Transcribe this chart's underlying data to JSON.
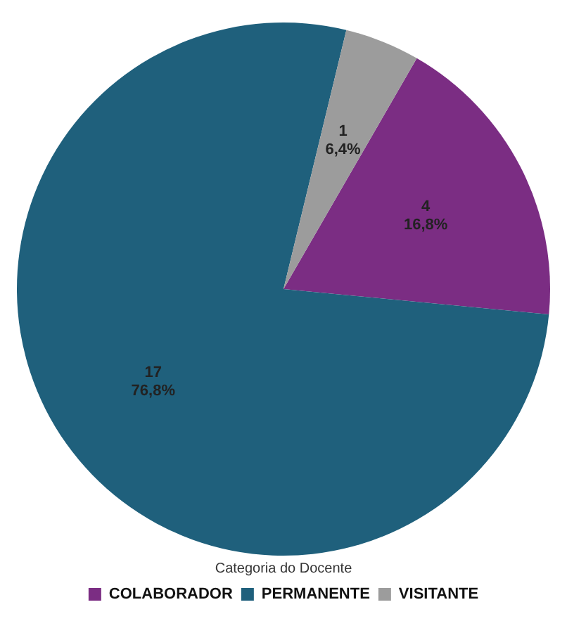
{
  "chart_data": {
    "type": "pie",
    "legend_title": "Categoria do Docente",
    "categories": [
      "COLABORADOR",
      "PERMANENTE",
      "VISITANTE"
    ],
    "values": [
      4,
      17,
      1
    ],
    "value_labels": [
      "4\n16,8%",
      "17\n76,8%",
      "1\n6,4%"
    ],
    "colors": [
      "#7b2d83",
      "#1f607c",
      "#9c9c9c"
    ],
    "legend": "bottom"
  }
}
